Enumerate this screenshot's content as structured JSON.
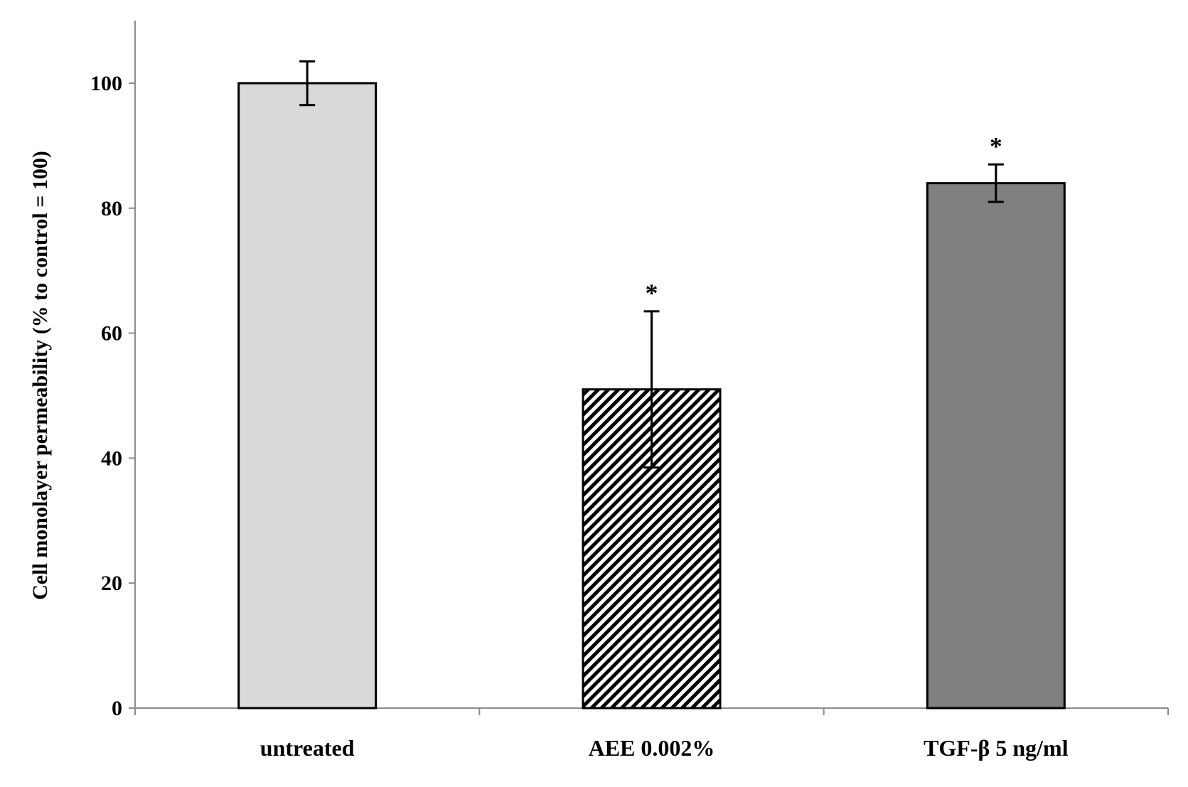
{
  "chart_data": {
    "type": "bar",
    "categories": [
      "untreated",
      "AEE 0.002%",
      "TGF-β 5 ng/ml"
    ],
    "values": [
      100,
      51,
      84
    ],
    "error": [
      3.5,
      12.5,
      3
    ],
    "significance": [
      "",
      "*",
      "*"
    ],
    "fill_styles": [
      "solid",
      "diagonal-hatch",
      "solid"
    ],
    "colors": [
      "#d9d9d9",
      "#000000",
      "#808080"
    ],
    "title": "",
    "xlabel": "",
    "ylabel": "Cell  monolayer  permeability  (% to control  = 100)",
    "ylim": [
      0,
      110
    ],
    "yticks": [
      0,
      20,
      40,
      60,
      80,
      100
    ],
    "grid": false,
    "legend": "none"
  }
}
